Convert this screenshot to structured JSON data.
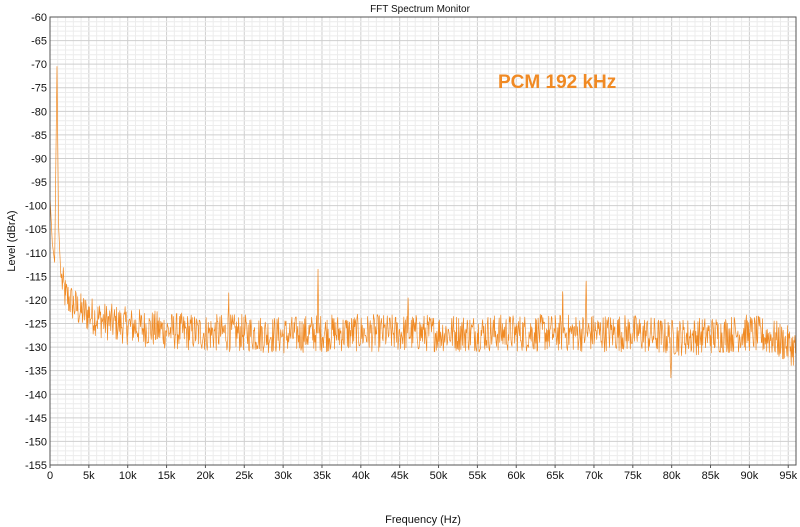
{
  "window": {
    "title": "FFT Spectrum Monitor"
  },
  "chart_data": {
    "type": "line",
    "title": "FFT Spectrum Monitor",
    "xlabel": "Frequency (Hz)",
    "ylabel": "Level (dBrA)",
    "xlim": [
      0,
      96000
    ],
    "ylim": [
      -155,
      -60
    ],
    "x_ticks": [
      {
        "value": 0,
        "label": "0"
      },
      {
        "value": 5000,
        "label": "5k"
      },
      {
        "value": 10000,
        "label": "10k"
      },
      {
        "value": 15000,
        "label": "15k"
      },
      {
        "value": 20000,
        "label": "20k"
      },
      {
        "value": 25000,
        "label": "25k"
      },
      {
        "value": 30000,
        "label": "30k"
      },
      {
        "value": 35000,
        "label": "35k"
      },
      {
        "value": 40000,
        "label": "40k"
      },
      {
        "value": 45000,
        "label": "45k"
      },
      {
        "value": 50000,
        "label": "50k"
      },
      {
        "value": 55000,
        "label": "55k"
      },
      {
        "value": 60000,
        "label": "60k"
      },
      {
        "value": 65000,
        "label": "65k"
      },
      {
        "value": 70000,
        "label": "70k"
      },
      {
        "value": 75000,
        "label": "75k"
      },
      {
        "value": 80000,
        "label": "80k"
      },
      {
        "value": 85000,
        "label": "85k"
      },
      {
        "value": 90000,
        "label": "90k"
      },
      {
        "value": 95000,
        "label": "95k"
      }
    ],
    "y_ticks": [
      {
        "value": -60,
        "label": "-60"
      },
      {
        "value": -65,
        "label": "-65"
      },
      {
        "value": -70,
        "label": "-70"
      },
      {
        "value": -75,
        "label": "-75"
      },
      {
        "value": -80,
        "label": "-80"
      },
      {
        "value": -85,
        "label": "-85"
      },
      {
        "value": -90,
        "label": "-90"
      },
      {
        "value": -95,
        "label": "-95"
      },
      {
        "value": -100,
        "label": "-100"
      },
      {
        "value": -105,
        "label": "-105"
      },
      {
        "value": -110,
        "label": "-110"
      },
      {
        "value": -115,
        "label": "-115"
      },
      {
        "value": -120,
        "label": "-120"
      },
      {
        "value": -125,
        "label": "-125"
      },
      {
        "value": -130,
        "label": "-130"
      },
      {
        "value": -135,
        "label": "-135"
      },
      {
        "value": -140,
        "label": "-140"
      },
      {
        "value": -145,
        "label": "-145"
      },
      {
        "value": -150,
        "label": "-150"
      },
      {
        "value": -155,
        "label": "-155"
      }
    ],
    "grid": true,
    "annotation": {
      "text": "PCM 192 kHz",
      "color": "#f08a24"
    },
    "series": [
      {
        "color": "#f08a24",
        "points": [
          [
            0,
            -98
          ],
          [
            300,
            -108
          ],
          [
            600,
            -112
          ],
          [
            900,
            -70.5
          ],
          [
            1100,
            -104
          ],
          [
            1400,
            -115
          ],
          [
            2000,
            -119
          ],
          [
            3000,
            -121
          ],
          [
            4000,
            -122.5
          ],
          [
            5000,
            -123
          ],
          [
            7000,
            -124.5
          ],
          [
            10000,
            -125.5
          ],
          [
            15000,
            -126.5
          ],
          [
            20000,
            -127
          ],
          [
            22900,
            -127
          ],
          [
            23000,
            -118.5
          ],
          [
            23100,
            -127
          ],
          [
            25000,
            -127
          ],
          [
            30000,
            -127.5
          ],
          [
            34400,
            -127
          ],
          [
            34500,
            -115
          ],
          [
            34600,
            -127
          ],
          [
            40000,
            -127
          ],
          [
            45000,
            -127
          ],
          [
            46000,
            -127
          ],
          [
            46100,
            -120.5
          ],
          [
            46200,
            -127
          ],
          [
            50000,
            -127
          ],
          [
            55000,
            -127
          ],
          [
            60000,
            -127
          ],
          [
            65000,
            -127
          ],
          [
            65900,
            -127
          ],
          [
            66000,
            -119
          ],
          [
            66100,
            -127
          ],
          [
            68900,
            -127
          ],
          [
            69000,
            -116
          ],
          [
            69100,
            -127
          ],
          [
            70000,
            -127
          ],
          [
            75000,
            -127
          ],
          [
            79800,
            -128
          ],
          [
            79900,
            -136.5
          ],
          [
            80000,
            -128
          ],
          [
            85000,
            -127.5
          ],
          [
            90000,
            -127
          ],
          [
            93000,
            -128
          ],
          [
            95000,
            -129.5
          ],
          [
            96000,
            -130.5
          ]
        ],
        "noise_db": 4
      }
    ]
  }
}
